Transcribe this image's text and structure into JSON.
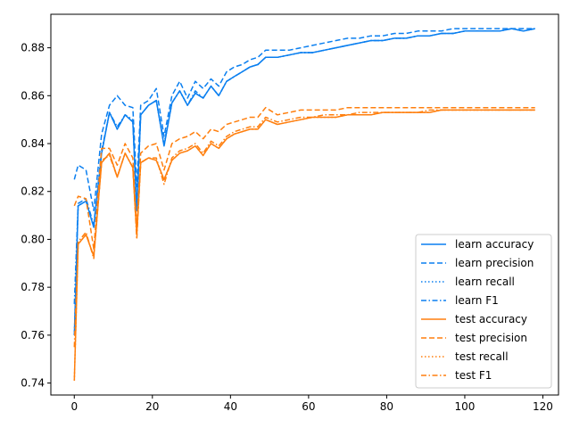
{
  "chart_data": {
    "type": "line",
    "title": "",
    "xlabel": "",
    "ylabel": "",
    "xlim": [
      -6,
      124
    ],
    "ylim": [
      0.735,
      0.894
    ],
    "x_ticks": [
      0,
      20,
      40,
      60,
      80,
      100,
      120
    ],
    "y_ticks": [
      0.74,
      0.76,
      0.78,
      0.8,
      0.82,
      0.84,
      0.86,
      0.88
    ],
    "y_tick_labels": [
      "0.74",
      "0.76",
      "0.78",
      "0.80",
      "0.82",
      "0.84",
      "0.86",
      "0.88"
    ],
    "x_tick_labels": [
      "0",
      "20",
      "40",
      "60",
      "80",
      "100",
      "120"
    ],
    "grid": false,
    "legend_position": "lower-right",
    "x": [
      0,
      1,
      3,
      5,
      7,
      9,
      11,
      13,
      15,
      16,
      17,
      19,
      21,
      23,
      25,
      27,
      29,
      31,
      33,
      35,
      37,
      39,
      41,
      43,
      45,
      47,
      49,
      52,
      55,
      58,
      61,
      64,
      67,
      70,
      73,
      76,
      79,
      82,
      85,
      88,
      91,
      94,
      97,
      100,
      103,
      106,
      109,
      112,
      115,
      118
    ],
    "series": [
      {
        "name": "learn accuracy",
        "color": "#1f77b4",
        "display_color": "#0a7ff0",
        "dash": "solid",
        "values": [
          0.76,
          0.814,
          0.816,
          0.805,
          0.836,
          0.853,
          0.846,
          0.852,
          0.849,
          0.812,
          0.852,
          0.856,
          0.858,
          0.839,
          0.857,
          0.862,
          0.856,
          0.861,
          0.859,
          0.864,
          0.86,
          0.866,
          0.868,
          0.87,
          0.872,
          0.873,
          0.876,
          0.876,
          0.877,
          0.878,
          0.878,
          0.879,
          0.88,
          0.881,
          0.882,
          0.883,
          0.883,
          0.884,
          0.884,
          0.885,
          0.885,
          0.886,
          0.886,
          0.887,
          0.887,
          0.887,
          0.887,
          0.888,
          0.887,
          0.888
        ]
      },
      {
        "name": "learn precision",
        "color": "#1f77b4",
        "display_color": "#0a7ff0",
        "dash": "dashed",
        "values": [
          0.825,
          0.831,
          0.829,
          0.812,
          0.844,
          0.856,
          0.86,
          0.856,
          0.855,
          0.822,
          0.856,
          0.858,
          0.863,
          0.843,
          0.86,
          0.866,
          0.859,
          0.866,
          0.863,
          0.867,
          0.864,
          0.87,
          0.872,
          0.873,
          0.875,
          0.876,
          0.879,
          0.879,
          0.879,
          0.88,
          0.881,
          0.882,
          0.883,
          0.884,
          0.884,
          0.885,
          0.885,
          0.886,
          0.886,
          0.887,
          0.887,
          0.887,
          0.888,
          0.888,
          0.888,
          0.888,
          0.888,
          0.888,
          0.888,
          0.888
        ]
      },
      {
        "name": "learn recall",
        "color": "#1f77b4",
        "display_color": "#0a7ff0",
        "dash": "dotted",
        "values": [
          0.76,
          0.814,
          0.816,
          0.805,
          0.836,
          0.853,
          0.846,
          0.852,
          0.849,
          0.812,
          0.852,
          0.856,
          0.858,
          0.839,
          0.857,
          0.862,
          0.856,
          0.861,
          0.859,
          0.864,
          0.86,
          0.866,
          0.868,
          0.87,
          0.872,
          0.873,
          0.876,
          0.876,
          0.877,
          0.878,
          0.878,
          0.879,
          0.88,
          0.881,
          0.882,
          0.883,
          0.883,
          0.884,
          0.884,
          0.885,
          0.885,
          0.886,
          0.886,
          0.887,
          0.887,
          0.887,
          0.887,
          0.888,
          0.887,
          0.888
        ]
      },
      {
        "name": "learn F1",
        "color": "#1f77b4",
        "display_color": "#0a7ff0",
        "dash": "dashdot",
        "values": [
          0.773,
          0.815,
          0.817,
          0.806,
          0.837,
          0.853,
          0.847,
          0.852,
          0.85,
          0.813,
          0.852,
          0.856,
          0.858,
          0.84,
          0.857,
          0.862,
          0.856,
          0.862,
          0.859,
          0.864,
          0.86,
          0.866,
          0.868,
          0.87,
          0.872,
          0.873,
          0.876,
          0.876,
          0.877,
          0.878,
          0.878,
          0.879,
          0.88,
          0.881,
          0.882,
          0.883,
          0.883,
          0.884,
          0.884,
          0.885,
          0.885,
          0.886,
          0.886,
          0.887,
          0.887,
          0.887,
          0.887,
          0.888,
          0.887,
          0.888
        ]
      },
      {
        "name": "test accuracy",
        "color": "#ff7f0e",
        "display_color": "#ff7f0e",
        "dash": "solid",
        "values": [
          0.741,
          0.798,
          0.802,
          0.793,
          0.832,
          0.836,
          0.826,
          0.836,
          0.83,
          0.802,
          0.832,
          0.834,
          0.833,
          0.825,
          0.833,
          0.836,
          0.837,
          0.839,
          0.835,
          0.84,
          0.838,
          0.842,
          0.844,
          0.845,
          0.846,
          0.846,
          0.85,
          0.848,
          0.849,
          0.85,
          0.851,
          0.851,
          0.851,
          0.852,
          0.852,
          0.852,
          0.853,
          0.853,
          0.853,
          0.853,
          0.853,
          0.854,
          0.854,
          0.854,
          0.854,
          0.854,
          0.854,
          0.854,
          0.854,
          0.854
        ]
      },
      {
        "name": "test precision",
        "color": "#ff7f0e",
        "display_color": "#ff7f0e",
        "dash": "dashed",
        "values": [
          0.814,
          0.818,
          0.817,
          0.796,
          0.838,
          0.838,
          0.831,
          0.84,
          0.834,
          0.805,
          0.836,
          0.839,
          0.84,
          0.829,
          0.84,
          0.842,
          0.843,
          0.845,
          0.842,
          0.846,
          0.845,
          0.848,
          0.849,
          0.85,
          0.851,
          0.851,
          0.855,
          0.852,
          0.853,
          0.854,
          0.854,
          0.854,
          0.854,
          0.855,
          0.855,
          0.855,
          0.855,
          0.855,
          0.855,
          0.855,
          0.855,
          0.855,
          0.855,
          0.855,
          0.855,
          0.855,
          0.855,
          0.855,
          0.855,
          0.855
        ]
      },
      {
        "name": "test recall",
        "color": "#ff7f0e",
        "display_color": "#ff7f0e",
        "dash": "dotted",
        "values": [
          0.741,
          0.798,
          0.802,
          0.793,
          0.832,
          0.836,
          0.826,
          0.836,
          0.83,
          0.802,
          0.832,
          0.834,
          0.833,
          0.825,
          0.833,
          0.836,
          0.837,
          0.839,
          0.835,
          0.84,
          0.838,
          0.842,
          0.844,
          0.845,
          0.846,
          0.846,
          0.85,
          0.848,
          0.849,
          0.85,
          0.851,
          0.851,
          0.851,
          0.852,
          0.852,
          0.852,
          0.853,
          0.853,
          0.853,
          0.853,
          0.853,
          0.854,
          0.854,
          0.854,
          0.854,
          0.854,
          0.854,
          0.854,
          0.854,
          0.854
        ]
      },
      {
        "name": "test F1",
        "color": "#ff7f0e",
        "display_color": "#ff7f0e",
        "dash": "dashdot",
        "values": [
          0.755,
          0.799,
          0.803,
          0.792,
          0.833,
          0.835,
          0.826,
          0.836,
          0.83,
          0.8,
          0.832,
          0.834,
          0.834,
          0.823,
          0.834,
          0.837,
          0.838,
          0.84,
          0.836,
          0.841,
          0.839,
          0.843,
          0.845,
          0.846,
          0.847,
          0.847,
          0.851,
          0.849,
          0.85,
          0.851,
          0.851,
          0.852,
          0.852,
          0.852,
          0.853,
          0.853,
          0.853,
          0.853,
          0.853,
          0.853,
          0.854,
          0.854,
          0.854,
          0.854,
          0.854,
          0.854,
          0.854,
          0.854,
          0.854,
          0.854
        ]
      }
    ]
  }
}
